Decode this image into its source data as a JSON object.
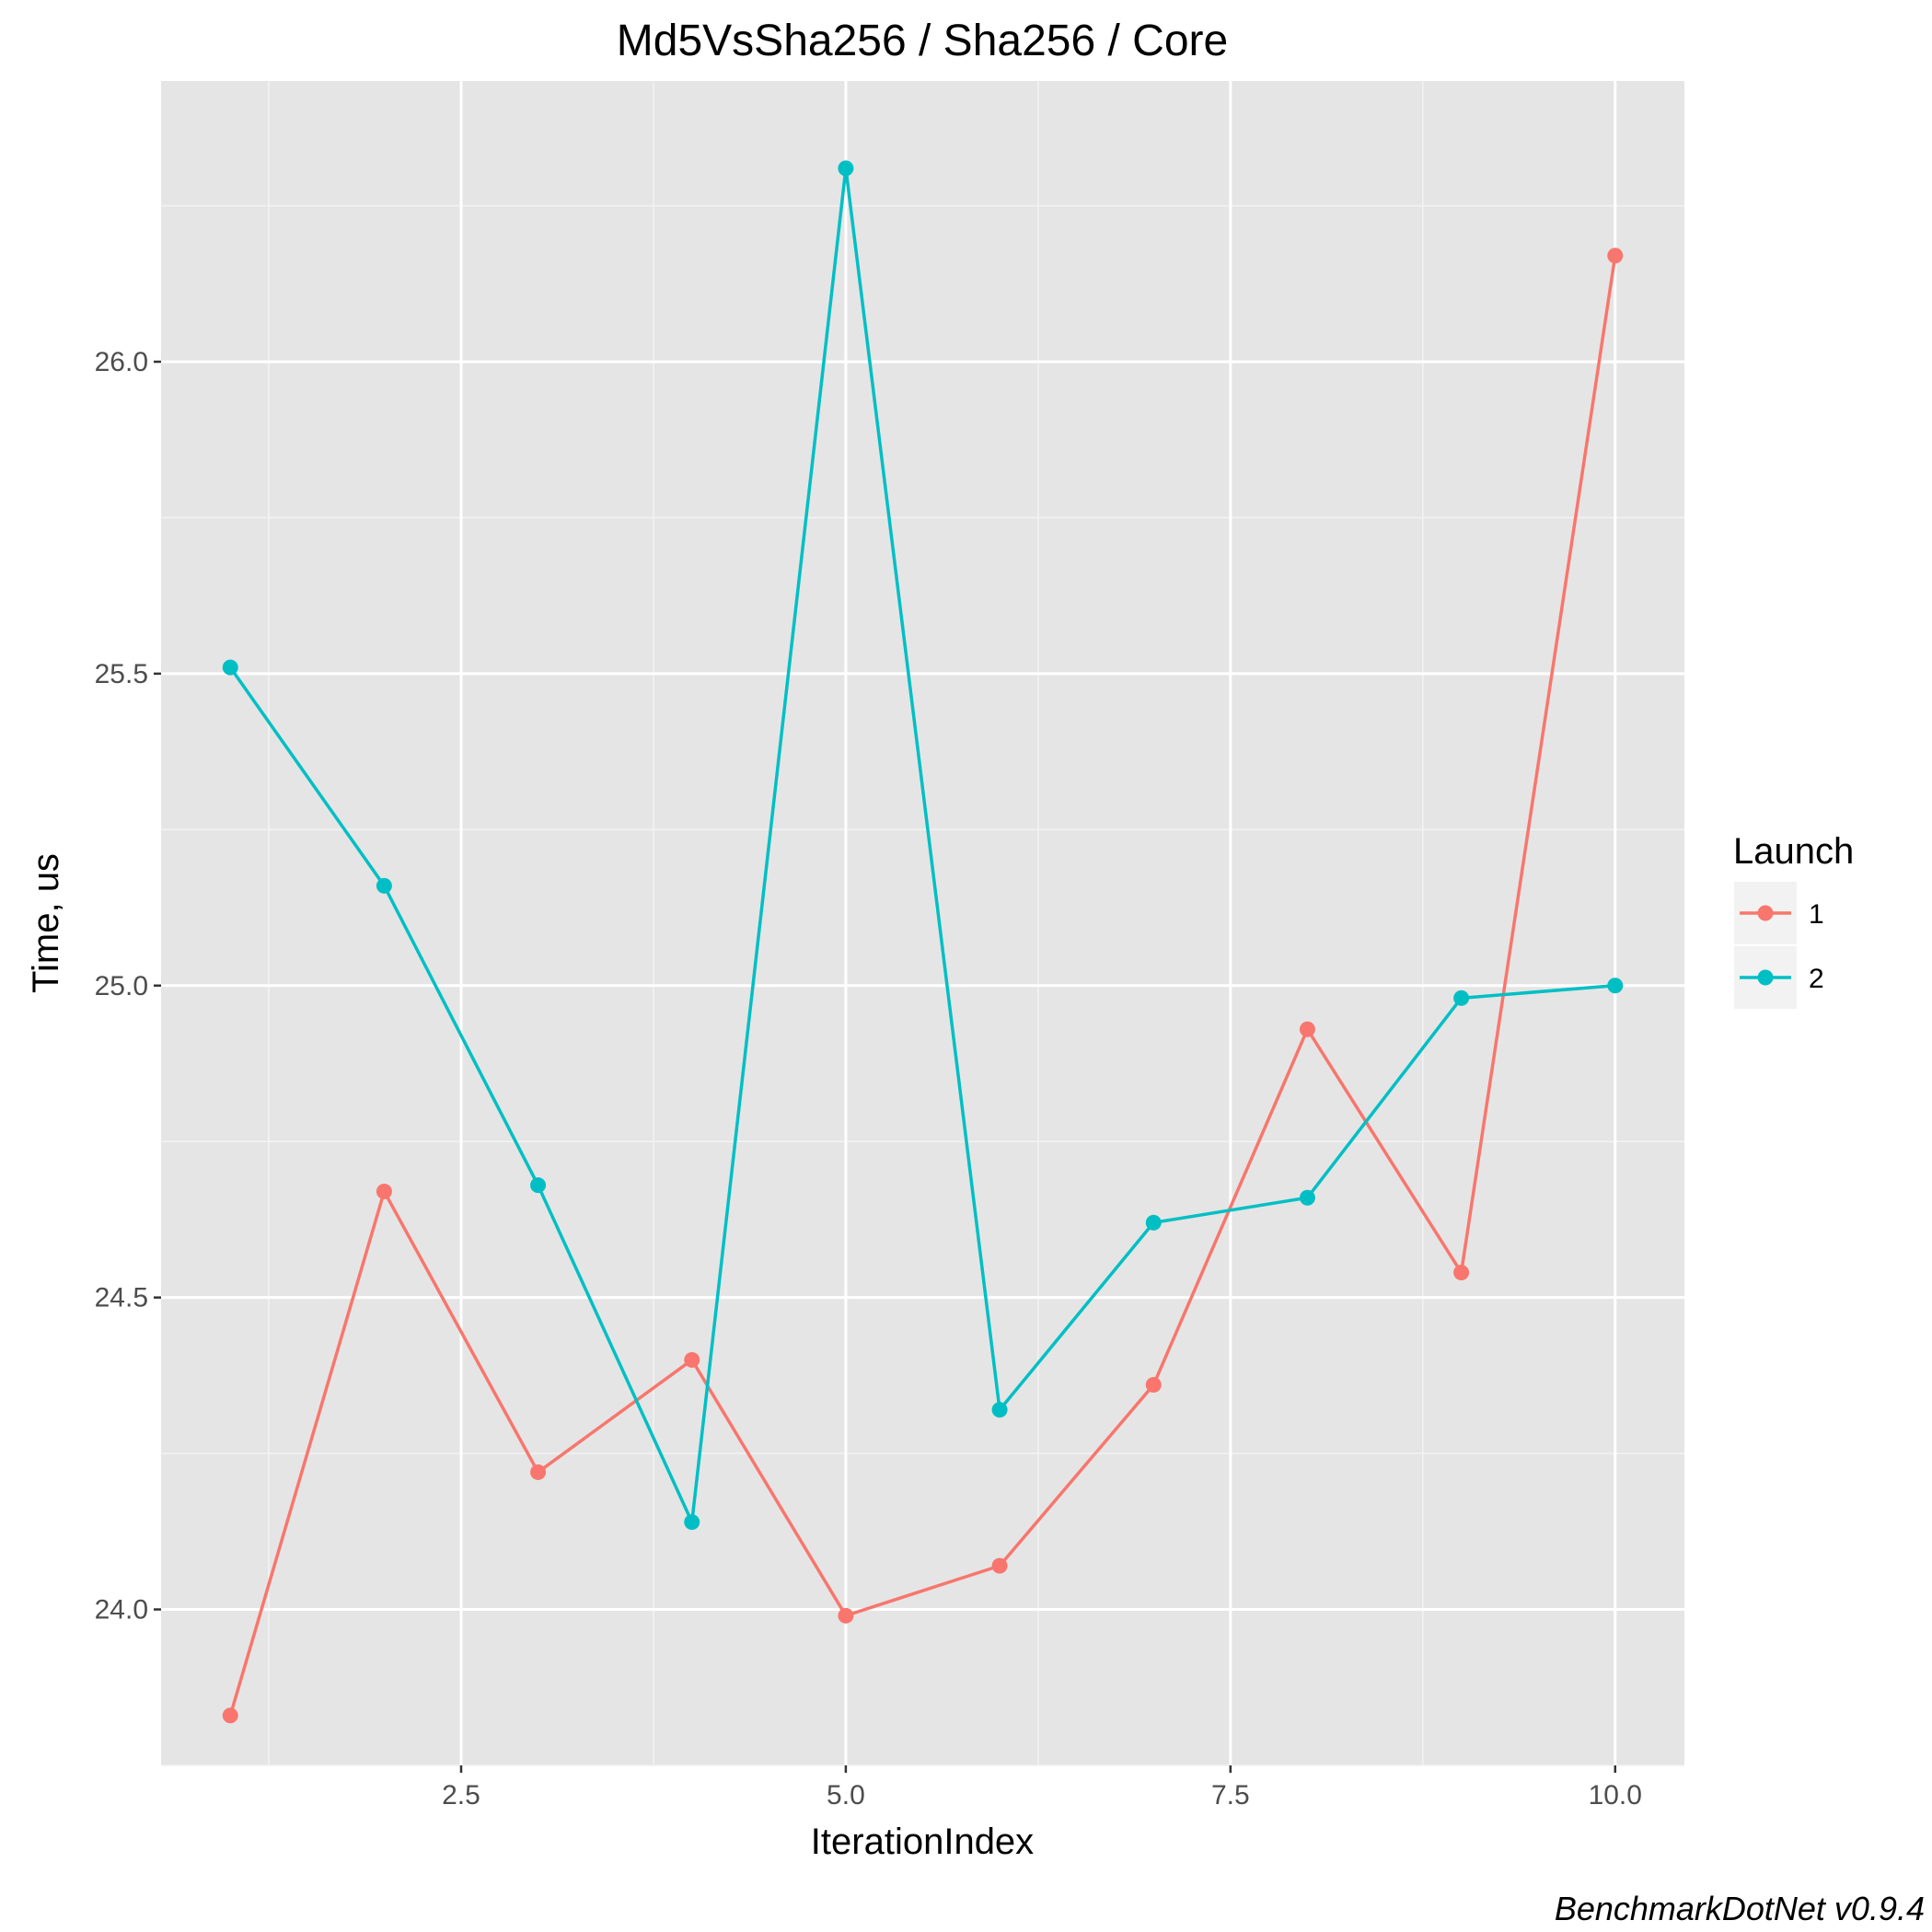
{
  "chart_data": {
    "type": "line",
    "title": "Md5VsSha256 / Sha256 / Core",
    "xlabel": "IterationIndex",
    "ylabel": "Time, us",
    "caption": "BenchmarkDotNet v0.9.4",
    "xlim": [
      0.55,
      10.45
    ],
    "ylim": [
      23.75,
      26.45
    ],
    "x_ticks": [
      2.5,
      5.0,
      7.5,
      10.0
    ],
    "x_tick_labels": [
      "2.5",
      "5.0",
      "7.5",
      "10.0"
    ],
    "y_ticks": [
      24.0,
      24.5,
      25.0,
      25.5,
      26.0
    ],
    "y_tick_labels": [
      "24.0",
      "24.5",
      "25.0",
      "25.5",
      "26.0"
    ],
    "x": [
      1,
      2,
      3,
      4,
      5,
      6,
      7,
      8,
      9,
      10
    ],
    "legend_title": "Launch",
    "legend_position": "right",
    "grid": true,
    "background": "#e5e5e5",
    "series": [
      {
        "name": "1",
        "color": "#f8766d",
        "values": [
          23.83,
          24.67,
          24.22,
          24.4,
          23.99,
          24.07,
          24.36,
          24.93,
          24.54,
          26.17
        ]
      },
      {
        "name": "2",
        "color": "#00bfc4",
        "values": [
          25.51,
          25.16,
          24.68,
          24.14,
          26.31,
          24.32,
          24.62,
          24.66,
          24.98,
          25.0
        ]
      }
    ]
  }
}
